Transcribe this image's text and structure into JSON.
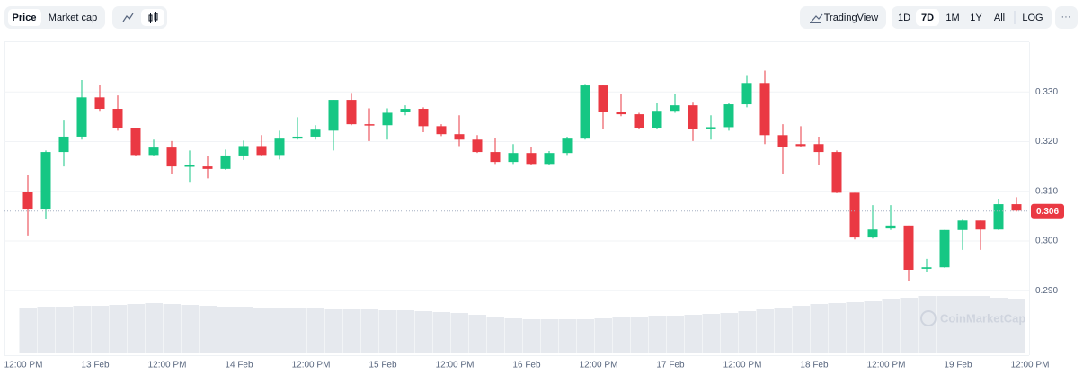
{
  "toolbar": {
    "price": "Price",
    "market_cap": "Market cap",
    "tradingview": "TradingView",
    "ranges": [
      "1D",
      "7D",
      "1M",
      "1Y",
      "All"
    ],
    "log": "LOG",
    "more": "···"
  },
  "watermark": "CoinMarketCap",
  "chart_data": {
    "type": "candlestick",
    "up_color": "#16c784",
    "down_color": "#ea3943",
    "volume_color": "#e6e9ee",
    "x_labels": [
      "12:00 PM",
      "13 Feb",
      "12:00 PM",
      "14 Feb",
      "12:00 PM",
      "15 Feb",
      "12:00 PM",
      "16 Feb",
      "12:00 PM",
      "17 Feb",
      "12:00 PM",
      "18 Feb",
      "12:00 PM",
      "19 Feb",
      "12:00 PM"
    ],
    "open": [
      0.3099,
      0.3065,
      0.3179,
      0.321,
      0.3289,
      0.3266,
      0.3228,
      0.3173,
      0.3188,
      0.315,
      0.315,
      0.3145,
      0.3172,
      0.3191,
      0.3173,
      0.3206,
      0.321,
      0.3222,
      0.3284,
      0.3235,
      0.3233,
      0.326,
      0.3266,
      0.3231,
      0.3215,
      0.3204,
      0.3179,
      0.3159,
      0.3177,
      0.3155,
      0.3177,
      0.3206,
      0.3313,
      0.326,
      0.3255,
      0.3228,
      0.3262,
      0.3273,
      0.3228,
      0.3229,
      0.3275,
      0.3318,
      0.3213,
      0.3195,
      0.3195,
      0.3179,
      0.3097,
      0.3007,
      0.3025,
      0.3031,
      0.2944,
      0.2947,
      0.3022,
      0.3041,
      0.3023,
      0.3074
    ],
    "high": [
      0.3132,
      0.3182,
      0.3244,
      0.3324,
      0.3313,
      0.3293,
      0.3228,
      0.3204,
      0.3201,
      0.3182,
      0.317,
      0.3184,
      0.3202,
      0.3213,
      0.3222,
      0.3249,
      0.3233,
      0.3284,
      0.3298,
      0.3267,
      0.3267,
      0.3273,
      0.3269,
      0.3235,
      0.3253,
      0.3213,
      0.3208,
      0.3195,
      0.319,
      0.3181,
      0.321,
      0.3316,
      0.3313,
      0.3296,
      0.3258,
      0.3278,
      0.3296,
      0.328,
      0.3253,
      0.3278,
      0.3334,
      0.3343,
      0.3235,
      0.3231,
      0.321,
      0.3182,
      0.3097,
      0.3072,
      0.3072,
      0.3031,
      0.2964,
      0.3022,
      0.3043,
      0.3041,
      0.3085,
      0.3088
    ],
    "low": [
      0.3011,
      0.3045,
      0.315,
      0.3204,
      0.3262,
      0.3222,
      0.317,
      0.317,
      0.3135,
      0.3119,
      0.3126,
      0.3143,
      0.3163,
      0.317,
      0.3164,
      0.3204,
      0.3204,
      0.3182,
      0.3233,
      0.3201,
      0.3204,
      0.3253,
      0.3219,
      0.3211,
      0.3191,
      0.3177,
      0.3155,
      0.3155,
      0.3152,
      0.3152,
      0.3173,
      0.3204,
      0.3226,
      0.3251,
      0.3226,
      0.3226,
      0.3258,
      0.3201,
      0.3204,
      0.3222,
      0.3269,
      0.3195,
      0.3135,
      0.319,
      0.3152,
      0.3096,
      0.3003,
      0.3005,
      0.3022,
      0.292,
      0.2937,
      0.2946,
      0.2982,
      0.2982,
      0.3022,
      0.3059
    ],
    "close": [
      0.3065,
      0.3179,
      0.321,
      0.3289,
      0.3266,
      0.3228,
      0.3173,
      0.3188,
      0.315,
      0.3152,
      0.3145,
      0.3172,
      0.3191,
      0.3173,
      0.3206,
      0.321,
      0.3224,
      0.3284,
      0.3235,
      0.3233,
      0.3258,
      0.3266,
      0.3231,
      0.3215,
      0.3204,
      0.3179,
      0.3159,
      0.3177,
      0.3155,
      0.3177,
      0.3206,
      0.3313,
      0.326,
      0.3255,
      0.3228,
      0.3262,
      0.3273,
      0.3226,
      0.3229,
      0.3275,
      0.3318,
      0.3213,
      0.319,
      0.3191,
      0.3179,
      0.3097,
      0.3007,
      0.3023,
      0.3031,
      0.2942,
      0.2947,
      0.3022,
      0.3041,
      0.3023,
      0.3074,
      0.3061
    ],
    "volume": [
      50,
      52,
      52,
      53,
      53,
      54,
      55,
      56,
      55,
      54,
      53,
      52,
      52,
      51,
      50,
      50,
      50,
      49,
      49,
      49,
      48,
      48,
      47,
      46,
      45,
      43,
      40,
      39,
      38,
      38,
      38,
      38,
      39,
      40,
      41,
      42,
      42,
      43,
      44,
      45,
      47,
      49,
      51,
      53,
      55,
      56,
      57,
      58,
      60,
      62,
      64,
      64,
      64,
      64,
      62,
      60
    ],
    "current_price": 0.306,
    "ylim": [
      0.277,
      0.34
    ],
    "yticks": [
      {
        "value": 0.29,
        "label": "0.290"
      },
      {
        "value": 0.3,
        "label": "0.300"
      },
      {
        "value": 0.31,
        "label": "0.310"
      },
      {
        "value": 0.32,
        "label": "0.320"
      },
      {
        "value": 0.33,
        "label": "0.330"
      }
    ],
    "grid": true
  }
}
